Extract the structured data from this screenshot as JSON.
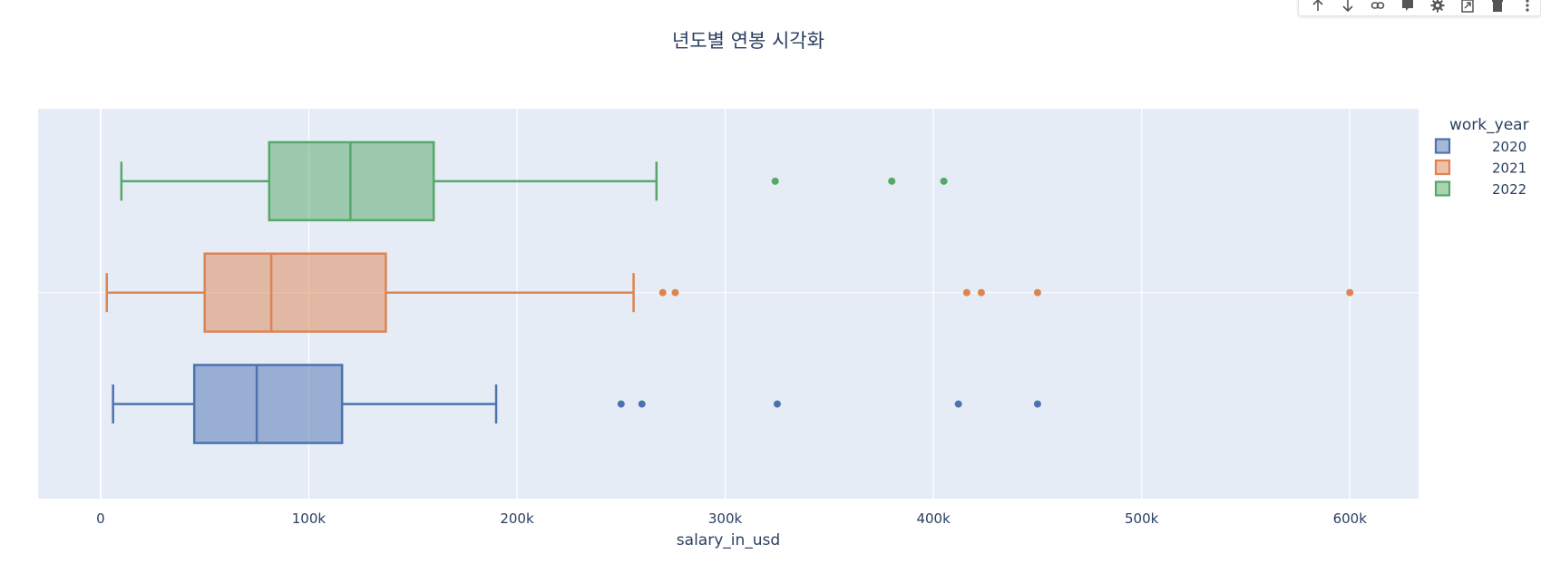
{
  "chart_data": {
    "type": "box",
    "title": "년도별 연봉 시각화",
    "xlabel": "salary_in_usd",
    "ylabel": "",
    "orientation": "horizontal",
    "xlim": [
      -30000,
      633000
    ],
    "x_ticks": [
      {
        "value": 0,
        "label": "0"
      },
      {
        "value": 100000,
        "label": "100k"
      },
      {
        "value": 200000,
        "label": "200k"
      },
      {
        "value": 300000,
        "label": "300k"
      },
      {
        "value": 400000,
        "label": "400k"
      },
      {
        "value": 500000,
        "label": "500k"
      },
      {
        "value": 600000,
        "label": "600k"
      }
    ],
    "grid": true,
    "legend": {
      "title": "work_year",
      "position": "top-right"
    },
    "series": [
      {
        "name": "2020",
        "color": "#4c72b0",
        "lower_whisker": 6000,
        "q1": 45000,
        "median": 75000,
        "q3": 116000,
        "upper_whisker": 190000,
        "outliers": [
          250000,
          260000,
          325000,
          412000,
          450000
        ]
      },
      {
        "name": "2021",
        "color": "#dd8452",
        "lower_whisker": 3000,
        "q1": 50000,
        "median": 82000,
        "q3": 137000,
        "upper_whisker": 256000,
        "outliers": [
          270000,
          276000,
          416000,
          423000,
          450000,
          600000
        ]
      },
      {
        "name": "2022",
        "color": "#55a868",
        "lower_whisker": 10000,
        "q1": 81000,
        "median": 120000,
        "q3": 160000,
        "upper_whisker": 267000,
        "outliers": [
          324000,
          380000,
          405000
        ]
      }
    ]
  },
  "toolbar": {
    "icons": [
      "arrow-up-icon",
      "arrow-down-icon",
      "link-icon",
      "comment-icon",
      "gear-icon",
      "export-icon",
      "trash-icon",
      "more-icon"
    ]
  }
}
